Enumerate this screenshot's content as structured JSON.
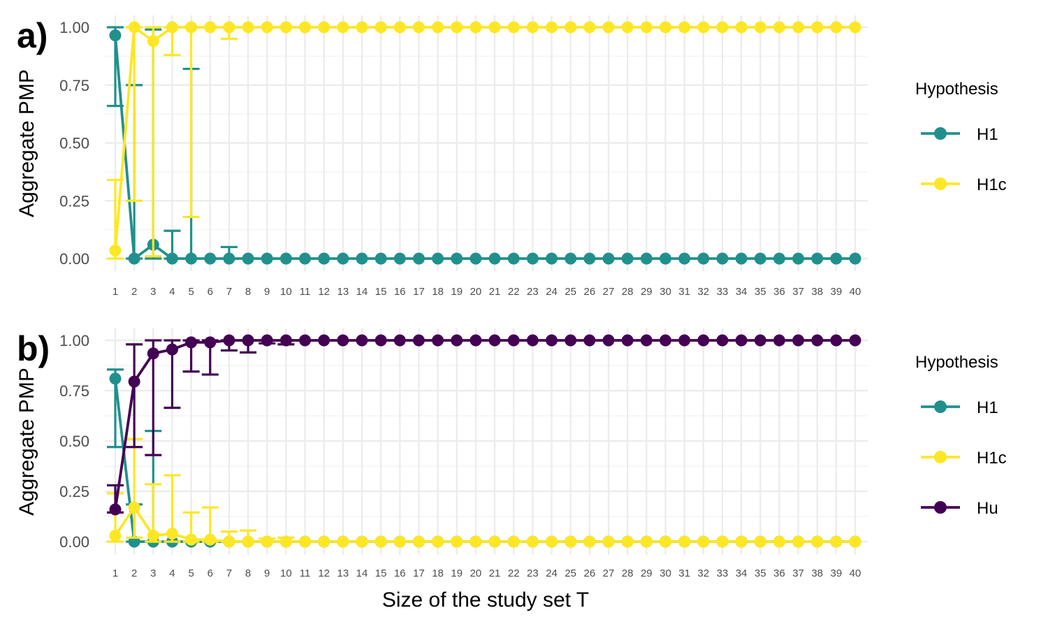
{
  "chart_data": [
    {
      "type": "line",
      "panel_label": "a)",
      "ylabel": "Aggregate PMP",
      "xlabel": "",
      "ylim": [
        -0.05,
        1.05
      ],
      "yticks": [
        "0.00",
        "0.25",
        "0.50",
        "0.75",
        "1.00"
      ],
      "x": [
        1,
        2,
        3,
        4,
        5,
        6,
        7,
        8,
        9,
        10,
        11,
        12,
        13,
        14,
        15,
        16,
        17,
        18,
        19,
        20,
        21,
        22,
        23,
        24,
        25,
        26,
        27,
        28,
        29,
        30,
        31,
        32,
        33,
        34,
        35,
        36,
        37,
        38,
        39,
        40
      ],
      "grid": true,
      "legend": {
        "title": "Hypothesis",
        "placement": "right"
      },
      "series": [
        {
          "name": "H1",
          "color": "#21908C",
          "values": [
            0.965,
            0,
            0.06,
            0,
            0,
            0,
            0,
            0,
            0,
            0,
            0,
            0,
            0,
            0,
            0,
            0,
            0,
            0,
            0,
            0,
            0,
            0,
            0,
            0,
            0,
            0,
            0,
            0,
            0,
            0,
            0,
            0,
            0,
            0,
            0,
            0,
            0,
            0,
            0,
            0
          ],
          "lower": [
            0.66,
            0,
            0,
            0,
            0,
            0,
            0,
            0,
            0,
            0,
            0,
            0,
            0,
            0,
            0,
            0,
            0,
            0,
            0,
            0,
            0,
            0,
            0,
            0,
            0,
            0,
            0,
            0,
            0,
            0,
            0,
            0,
            0,
            0,
            0,
            0,
            0,
            0,
            0,
            0
          ],
          "upper": [
            1,
            0.75,
            0.99,
            0.12,
            0.82,
            0,
            0.05,
            0,
            0,
            0,
            0,
            0,
            0,
            0,
            0,
            0,
            0,
            0,
            0,
            0,
            0,
            0,
            0,
            0,
            0,
            0,
            0,
            0,
            0,
            0,
            0,
            0,
            0,
            0,
            0,
            0,
            0,
            0,
            0,
            0
          ]
        },
        {
          "name": "H1c",
          "color": "#FDE725",
          "values": [
            0.035,
            1,
            0.94,
            1,
            1,
            1,
            1,
            1,
            1,
            1,
            1,
            1,
            1,
            1,
            1,
            1,
            1,
            1,
            1,
            1,
            1,
            1,
            1,
            1,
            1,
            1,
            1,
            1,
            1,
            1,
            1,
            1,
            1,
            1,
            1,
            1,
            1,
            1,
            1,
            1
          ],
          "lower": [
            0,
            0.25,
            0.01,
            0.88,
            0.18,
            1,
            0.95,
            1,
            1,
            1,
            1,
            1,
            1,
            1,
            1,
            1,
            1,
            1,
            1,
            1,
            1,
            1,
            1,
            1,
            1,
            1,
            1,
            1,
            1,
            1,
            1,
            1,
            1,
            1,
            1,
            1,
            1,
            1,
            1,
            1
          ],
          "upper": [
            0.34,
            1,
            1,
            1,
            1,
            1,
            1,
            1,
            1,
            1,
            1,
            1,
            1,
            1,
            1,
            1,
            1,
            1,
            1,
            1,
            1,
            1,
            1,
            1,
            1,
            1,
            1,
            1,
            1,
            1,
            1,
            1,
            1,
            1,
            1,
            1,
            1,
            1,
            1,
            1
          ]
        }
      ]
    },
    {
      "type": "line",
      "panel_label": "b)",
      "ylabel": "Aggregate PMP",
      "xlabel": "Size of the study set T",
      "ylim": [
        -0.05,
        1.05
      ],
      "yticks": [
        "0.00",
        "0.25",
        "0.50",
        "0.75",
        "1.00"
      ],
      "x": [
        1,
        2,
        3,
        4,
        5,
        6,
        7,
        8,
        9,
        10,
        11,
        12,
        13,
        14,
        15,
        16,
        17,
        18,
        19,
        20,
        21,
        22,
        23,
        24,
        25,
        26,
        27,
        28,
        29,
        30,
        31,
        32,
        33,
        34,
        35,
        36,
        37,
        38,
        39,
        40
      ],
      "grid": true,
      "legend": {
        "title": "Hypothesis",
        "placement": "right"
      },
      "series": [
        {
          "name": "H1",
          "color": "#21908C",
          "values": [
            0.81,
            0,
            0,
            0,
            0,
            0,
            0,
            0,
            0,
            0,
            0,
            0,
            0,
            0,
            0,
            0,
            0,
            0,
            0,
            0,
            0,
            0,
            0,
            0,
            0,
            0,
            0,
            0,
            0,
            0,
            0,
            0,
            0,
            0,
            0,
            0,
            0,
            0,
            0,
            0
          ],
          "lower": [
            0.47,
            0,
            0,
            0,
            0,
            0,
            0,
            0,
            0,
            0,
            0,
            0,
            0,
            0,
            0,
            0,
            0,
            0,
            0,
            0,
            0,
            0,
            0,
            0,
            0,
            0,
            0,
            0,
            0,
            0,
            0,
            0,
            0,
            0,
            0,
            0,
            0,
            0,
            0,
            0
          ],
          "upper": [
            0.855,
            0.185,
            0.55,
            0,
            0,
            0,
            0,
            0,
            0,
            0,
            0,
            0,
            0,
            0,
            0,
            0,
            0,
            0,
            0,
            0,
            0,
            0,
            0,
            0,
            0,
            0,
            0,
            0,
            0,
            0,
            0,
            0,
            0,
            0,
            0,
            0,
            0,
            0,
            0,
            0
          ]
        },
        {
          "name": "H1c",
          "color": "#FDE725",
          "values": [
            0.03,
            0.17,
            0.03,
            0.04,
            0.01,
            0.01,
            0,
            0,
            0,
            0,
            0,
            0,
            0,
            0,
            0,
            0,
            0,
            0,
            0,
            0,
            0,
            0,
            0,
            0,
            0,
            0,
            0,
            0,
            0,
            0,
            0,
            0,
            0,
            0,
            0,
            0,
            0,
            0,
            0,
            0
          ],
          "lower": [
            0,
            0.02,
            0,
            0,
            0,
            0,
            0,
            0,
            0,
            0,
            0,
            0,
            0,
            0,
            0,
            0,
            0,
            0,
            0,
            0,
            0,
            0,
            0,
            0,
            0,
            0,
            0,
            0,
            0,
            0,
            0,
            0,
            0,
            0,
            0,
            0,
            0,
            0,
            0,
            0
          ],
          "upper": [
            0.24,
            0.51,
            0.285,
            0.33,
            0.145,
            0.17,
            0.05,
            0.055,
            0.015,
            0.02,
            0,
            0,
            0,
            0,
            0,
            0,
            0,
            0,
            0,
            0,
            0,
            0,
            0,
            0,
            0,
            0,
            0,
            0,
            0,
            0,
            0,
            0,
            0,
            0,
            0,
            0,
            0,
            0,
            0,
            0
          ]
        },
        {
          "name": "Hu",
          "color": "#440154",
          "values": [
            0.16,
            0.795,
            0.935,
            0.955,
            0.99,
            0.99,
            1,
            1,
            1,
            1,
            1,
            1,
            1,
            1,
            1,
            1,
            1,
            1,
            1,
            1,
            1,
            1,
            1,
            1,
            1,
            1,
            1,
            1,
            1,
            1,
            1,
            1,
            1,
            1,
            1,
            1,
            1,
            1,
            1,
            1
          ],
          "lower": [
            0.145,
            0.47,
            0.43,
            0.665,
            0.845,
            0.83,
            0.95,
            0.94,
            0.985,
            0.98,
            1,
            1,
            1,
            1,
            1,
            1,
            1,
            1,
            1,
            1,
            1,
            1,
            1,
            1,
            1,
            1,
            1,
            1,
            1,
            1,
            1,
            1,
            1,
            1,
            1,
            1,
            1,
            1,
            1,
            1
          ],
          "upper": [
            0.28,
            0.98,
            1,
            1,
            1,
            1,
            1,
            1,
            1,
            1,
            1,
            1,
            1,
            1,
            1,
            1,
            1,
            1,
            1,
            1,
            1,
            1,
            1,
            1,
            1,
            1,
            1,
            1,
            1,
            1,
            1,
            1,
            1,
            1,
            1,
            1,
            1,
            1,
            1,
            1
          ]
        }
      ]
    }
  ]
}
